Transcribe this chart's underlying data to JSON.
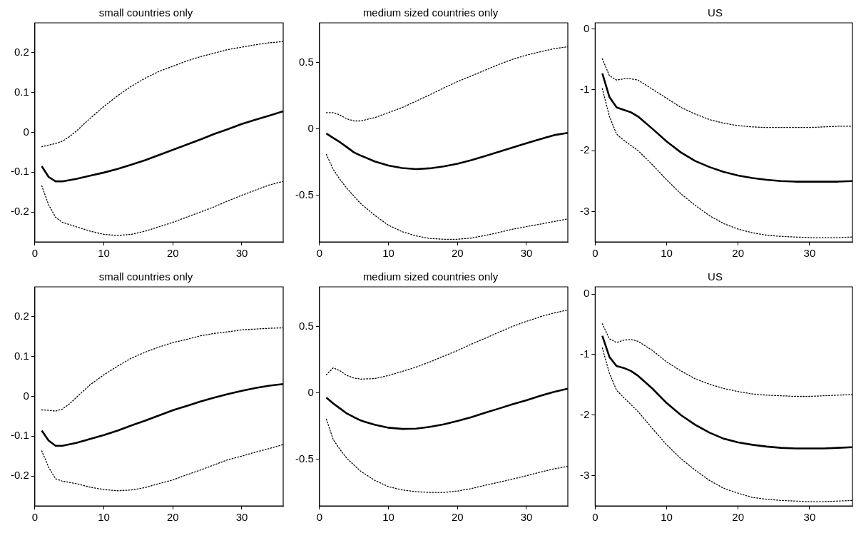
{
  "chart_data": [
    {
      "type": "line",
      "title": "small countries only",
      "x": [
        1,
        2,
        3,
        4,
        5,
        6,
        8,
        10,
        12,
        14,
        16,
        18,
        20,
        22,
        24,
        26,
        28,
        30,
        32,
        34,
        36
      ],
      "xlim": [
        0,
        36
      ],
      "xticks": [
        0,
        10,
        20,
        30
      ],
      "ylim": [
        -0.275,
        0.275
      ],
      "yticks": [
        {
          "value": -0.2,
          "label": "-0.2"
        },
        {
          "value": -0.1,
          "label": "-0.1"
        },
        0,
        {
          "value": 0.1,
          "label": "0.1"
        },
        {
          "value": 0.2,
          "label": "0.2"
        }
      ],
      "grid": false,
      "legend": false,
      "series": [
        {
          "color": "#000000",
          "line_style": "solid",
          "x": [
            1,
            2,
            3,
            4,
            6,
            8,
            10,
            12,
            14,
            16,
            18,
            20,
            22,
            24,
            26,
            28,
            30,
            32,
            34,
            36
          ],
          "values": [
            -0.085,
            -0.112,
            -0.123,
            -0.123,
            -0.117,
            -0.109,
            -0.101,
            -0.092,
            -0.081,
            -0.07,
            -0.057,
            -0.044,
            -0.031,
            -0.018,
            -0.004,
            0.008,
            0.021,
            0.032,
            0.042,
            0.053
          ]
        },
        {
          "color": "#000000",
          "line_style": "dotted",
          "values": [
            -0.036,
            -0.032,
            -0.028,
            -0.022,
            -0.011,
            0.003,
            0.035,
            0.065,
            0.092,
            0.116,
            0.136,
            0.153,
            0.166,
            0.179,
            0.19,
            0.199,
            0.208,
            0.214,
            0.22,
            0.225,
            0.228
          ]
        },
        {
          "color": "#000000",
          "line_style": "dotted",
          "x": [
            1,
            2,
            3,
            4,
            6,
            8,
            10,
            12,
            14,
            16,
            18,
            20,
            22,
            24,
            26,
            28,
            30,
            32,
            34,
            36
          ],
          "values": [
            -0.134,
            -0.182,
            -0.213,
            -0.226,
            -0.237,
            -0.248,
            -0.256,
            -0.259,
            -0.256,
            -0.248,
            -0.237,
            -0.226,
            -0.213,
            -0.2,
            -0.187,
            -0.172,
            -0.158,
            -0.145,
            -0.132,
            -0.123
          ]
        }
      ]
    },
    {
      "type": "line",
      "title": "medium sized countries only",
      "x": [
        1,
        2,
        3,
        4,
        5,
        6,
        8,
        10,
        12,
        14,
        16,
        18,
        20,
        22,
        24,
        26,
        28,
        30,
        32,
        34,
        36
      ],
      "xlim": [
        0,
        36
      ],
      "xticks": [
        0,
        10,
        20,
        30
      ],
      "ylim": [
        -0.85,
        0.8
      ],
      "yticks": [
        {
          "value": -0.5,
          "label": "-0.5"
        },
        0,
        {
          "value": 0.5,
          "label": "0.5"
        }
      ],
      "grid": false,
      "legend": false,
      "series": [
        {
          "color": "#000000",
          "line_style": "solid",
          "values": [
            -0.034,
            -0.067,
            -0.1,
            -0.137,
            -0.176,
            -0.2,
            -0.244,
            -0.275,
            -0.294,
            -0.302,
            -0.296,
            -0.282,
            -0.261,
            -0.235,
            -0.204,
            -0.172,
            -0.139,
            -0.107,
            -0.076,
            -0.046,
            -0.029
          ]
        },
        {
          "color": "#000000",
          "line_style": "dotted",
          "values": [
            0.124,
            0.124,
            0.105,
            0.076,
            0.061,
            0.061,
            0.086,
            0.124,
            0.162,
            0.21,
            0.258,
            0.309,
            0.357,
            0.4,
            0.443,
            0.487,
            0.525,
            0.557,
            0.582,
            0.605,
            0.62
          ]
        },
        {
          "color": "#000000",
          "line_style": "dotted",
          "x": [
            1,
            2,
            3,
            4,
            6,
            8,
            10,
            12,
            14,
            16,
            18,
            20,
            22,
            24,
            26,
            28,
            30,
            32,
            34,
            36
          ],
          "values": [
            -0.191,
            -0.305,
            -0.382,
            -0.448,
            -0.563,
            -0.649,
            -0.725,
            -0.773,
            -0.805,
            -0.824,
            -0.83,
            -0.83,
            -0.821,
            -0.802,
            -0.779,
            -0.754,
            -0.735,
            -0.716,
            -0.697,
            -0.677
          ]
        }
      ]
    },
    {
      "type": "line",
      "title": "US",
      "x": [
        1,
        2,
        3,
        4,
        5,
        6,
        8,
        10,
        12,
        14,
        16,
        18,
        20,
        22,
        24,
        26,
        28,
        30,
        32,
        34,
        36
      ],
      "xlim": [
        0,
        36
      ],
      "xticks": [
        0,
        10,
        20,
        30
      ],
      "ylim": [
        -3.5,
        0.1
      ],
      "yticks": [
        -3,
        -2,
        -1,
        0
      ],
      "grid": false,
      "legend": false,
      "series": [
        {
          "color": "#000000",
          "line_style": "solid",
          "values": [
            -0.73,
            -1.12,
            -1.29,
            -1.33,
            -1.37,
            -1.44,
            -1.64,
            -1.85,
            -2.03,
            -2.17,
            -2.27,
            -2.35,
            -2.41,
            -2.45,
            -2.48,
            -2.5,
            -2.51,
            -2.51,
            -2.51,
            -2.51,
            -2.5
          ]
        },
        {
          "color": "#000000",
          "line_style": "dotted",
          "values": [
            -0.49,
            -0.77,
            -0.84,
            -0.82,
            -0.82,
            -0.84,
            -0.99,
            -1.14,
            -1.29,
            -1.4,
            -1.49,
            -1.55,
            -1.59,
            -1.61,
            -1.62,
            -1.62,
            -1.62,
            -1.62,
            -1.61,
            -1.6,
            -1.6
          ]
        },
        {
          "color": "#000000",
          "line_style": "dotted",
          "x": [
            1,
            2,
            3,
            4,
            6,
            8,
            10,
            12,
            14,
            16,
            18,
            20,
            22,
            24,
            26,
            28,
            30,
            32,
            34,
            36
          ],
          "values": [
            -0.98,
            -1.44,
            -1.73,
            -1.83,
            -2.0,
            -2.23,
            -2.48,
            -2.71,
            -2.9,
            -3.07,
            -3.2,
            -3.29,
            -3.35,
            -3.39,
            -3.41,
            -3.42,
            -3.43,
            -3.43,
            -3.43,
            -3.42
          ]
        }
      ]
    },
    {
      "type": "line",
      "title": "small countries only",
      "x": [
        1,
        2,
        3,
        4,
        5,
        6,
        8,
        10,
        12,
        14,
        16,
        18,
        20,
        22,
        24,
        26,
        28,
        30,
        32,
        34,
        36
      ],
      "xlim": [
        0,
        36
      ],
      "xticks": [
        0,
        10,
        20,
        30
      ],
      "ylim": [
        -0.275,
        0.275
      ],
      "yticks": [
        {
          "value": -0.2,
          "label": "-0.2"
        },
        {
          "value": -0.1,
          "label": "-0.1"
        },
        0,
        {
          "value": 0.1,
          "label": "0.1"
        },
        {
          "value": 0.2,
          "label": "0.2"
        }
      ],
      "grid": false,
      "legend": false,
      "series": [
        {
          "color": "#000000",
          "line_style": "solid",
          "x": [
            1,
            2,
            3,
            4,
            6,
            8,
            10,
            12,
            14,
            16,
            18,
            20,
            22,
            24,
            26,
            28,
            30,
            32,
            34,
            36
          ],
          "values": [
            -0.086,
            -0.111,
            -0.124,
            -0.124,
            -0.117,
            -0.107,
            -0.097,
            -0.086,
            -0.073,
            -0.061,
            -0.048,
            -0.035,
            -0.024,
            -0.013,
            -0.003,
            0.006,
            0.014,
            0.021,
            0.027,
            0.031
          ]
        },
        {
          "color": "#000000",
          "line_style": "dotted",
          "values": [
            -0.034,
            -0.035,
            -0.037,
            -0.032,
            -0.019,
            -0.003,
            0.029,
            0.054,
            0.076,
            0.096,
            0.111,
            0.124,
            0.135,
            0.143,
            0.152,
            0.158,
            0.162,
            0.167,
            0.169,
            0.171,
            0.172
          ]
        },
        {
          "color": "#000000",
          "line_style": "dotted",
          "x": [
            1,
            2,
            3,
            4,
            6,
            8,
            10,
            12,
            14,
            16,
            18,
            20,
            22,
            24,
            26,
            28,
            30,
            32,
            34,
            36
          ],
          "values": [
            -0.137,
            -0.178,
            -0.207,
            -0.213,
            -0.219,
            -0.228,
            -0.234,
            -0.237,
            -0.235,
            -0.229,
            -0.219,
            -0.21,
            -0.197,
            -0.185,
            -0.172,
            -0.159,
            -0.15,
            -0.14,
            -0.131,
            -0.121
          ]
        }
      ]
    },
    {
      "type": "line",
      "title": "medium sized countries only",
      "x": [
        1,
        2,
        3,
        4,
        5,
        6,
        8,
        10,
        12,
        14,
        16,
        18,
        20,
        22,
        24,
        26,
        28,
        30,
        32,
        34,
        36
      ],
      "xlim": [
        0,
        36
      ],
      "xticks": [
        0,
        10,
        20,
        30
      ],
      "ylim": [
        -0.85,
        0.8
      ],
      "yticks": [
        {
          "value": -0.5,
          "label": "-0.5"
        },
        0,
        {
          "value": 0.5,
          "label": "0.5"
        }
      ],
      "grid": false,
      "legend": false,
      "series": [
        {
          "color": "#000000",
          "line_style": "solid",
          "values": [
            -0.034,
            -0.079,
            -0.117,
            -0.155,
            -0.182,
            -0.207,
            -0.239,
            -0.261,
            -0.27,
            -0.268,
            -0.255,
            -0.236,
            -0.211,
            -0.182,
            -0.149,
            -0.117,
            -0.084,
            -0.054,
            -0.021,
            0.008,
            0.033
          ]
        },
        {
          "color": "#000000",
          "line_style": "dotted",
          "values": [
            0.138,
            0.19,
            0.167,
            0.132,
            0.113,
            0.105,
            0.109,
            0.132,
            0.163,
            0.195,
            0.234,
            0.278,
            0.32,
            0.368,
            0.412,
            0.458,
            0.502,
            0.54,
            0.575,
            0.603,
            0.626
          ]
        },
        {
          "color": "#000000",
          "line_style": "dotted",
          "x": [
            1,
            2,
            3,
            4,
            6,
            8,
            10,
            12,
            14,
            16,
            18,
            20,
            22,
            24,
            26,
            28,
            30,
            32,
            34,
            36
          ],
          "values": [
            -0.197,
            -0.351,
            -0.427,
            -0.494,
            -0.59,
            -0.657,
            -0.705,
            -0.73,
            -0.743,
            -0.749,
            -0.749,
            -0.738,
            -0.72,
            -0.695,
            -0.672,
            -0.648,
            -0.623,
            -0.596,
            -0.571,
            -0.552
          ]
        }
      ]
    },
    {
      "type": "line",
      "title": "US",
      "x": [
        1,
        2,
        3,
        4,
        5,
        6,
        8,
        10,
        12,
        14,
        16,
        18,
        20,
        22,
        24,
        26,
        28,
        30,
        32,
        34,
        36
      ],
      "xlim": [
        0,
        36
      ],
      "xticks": [
        0,
        10,
        20,
        30
      ],
      "ylim": [
        -3.5,
        0.12
      ],
      "yticks": [
        -3,
        -2,
        -1,
        0
      ],
      "grid": false,
      "legend": false,
      "series": [
        {
          "color": "#000000",
          "line_style": "solid",
          "values": [
            -0.69,
            -1.04,
            -1.19,
            -1.22,
            -1.27,
            -1.35,
            -1.56,
            -1.8,
            -2.0,
            -2.16,
            -2.29,
            -2.39,
            -2.45,
            -2.49,
            -2.52,
            -2.54,
            -2.55,
            -2.55,
            -2.55,
            -2.54,
            -2.53
          ]
        },
        {
          "color": "#000000",
          "line_style": "dotted",
          "values": [
            -0.49,
            -0.74,
            -0.8,
            -0.76,
            -0.75,
            -0.78,
            -0.93,
            -1.12,
            -1.27,
            -1.4,
            -1.49,
            -1.56,
            -1.61,
            -1.65,
            -1.67,
            -1.68,
            -1.69,
            -1.69,
            -1.68,
            -1.67,
            -1.66
          ]
        },
        {
          "color": "#000000",
          "line_style": "dotted",
          "x": [
            1,
            2,
            3,
            4,
            6,
            8,
            10,
            12,
            14,
            16,
            18,
            20,
            22,
            24,
            26,
            28,
            30,
            32,
            34,
            36
          ],
          "values": [
            -0.89,
            -1.31,
            -1.59,
            -1.71,
            -1.94,
            -2.22,
            -2.49,
            -2.72,
            -2.91,
            -3.08,
            -3.21,
            -3.29,
            -3.36,
            -3.39,
            -3.41,
            -3.42,
            -3.43,
            -3.43,
            -3.42,
            -3.41
          ]
        }
      ]
    }
  ]
}
